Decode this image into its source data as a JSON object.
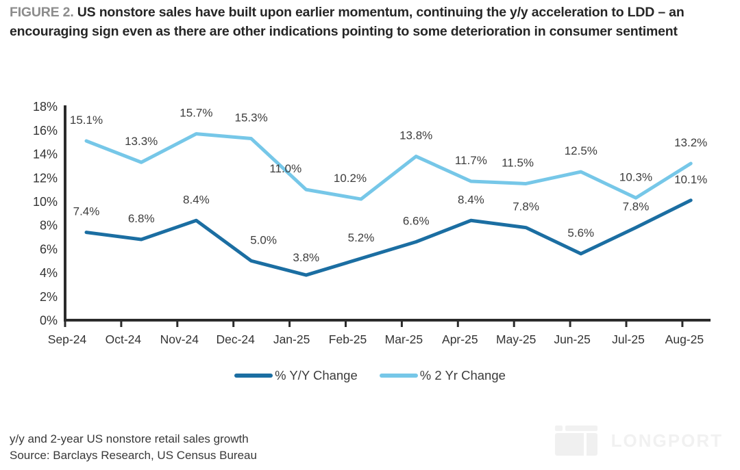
{
  "title": {
    "prefix": "FIGURE 2.",
    "text": "US nonstore sales have built upon earlier momentum, continuing the y/y acceleration to LDD – an encouraging sign even as there are other indications pointing to some deterioration in consumer sentiment"
  },
  "chart_data": {
    "type": "line",
    "categories": [
      "Sep-24",
      "Oct-24",
      "Nov-24",
      "Dec-24",
      "Jan-25",
      "Feb-25",
      "Mar-25",
      "Apr-25",
      "May-25",
      "Jun-25",
      "Jul-25",
      "Aug-25"
    ],
    "series": [
      {
        "name": "% Y/Y Change",
        "color": "#1b6ea2",
        "values": [
          7.4,
          6.8,
          8.4,
          5.0,
          3.8,
          5.2,
          6.6,
          8.4,
          7.8,
          5.6,
          7.8,
          10.1
        ]
      },
      {
        "name": "% 2 Yr Change",
        "color": "#76c7e8",
        "values": [
          15.1,
          13.3,
          15.7,
          15.3,
          11.0,
          10.2,
          13.8,
          11.7,
          11.5,
          12.5,
          10.3,
          13.2
        ]
      }
    ],
    "title": "",
    "xlabel": "",
    "ylabel": "",
    "ylim": [
      0,
      18
    ],
    "ytick_step": 2,
    "ytick_suffix": "%",
    "grid": false,
    "legend_position": "bottom",
    "data_labels": true,
    "label_offsets": {
      "0": {
        "3": {
          "dx": 18
        },
        "4": {
          "dy": 5
        }
      },
      "1": {
        "4": {
          "dx": -30
        },
        "5": {
          "dx": -16
        },
        "8": {
          "dx": -12
        }
      }
    },
    "axis_color": "#2b2b2b",
    "label_color": "#3d3d3d"
  },
  "footer": {
    "caption": "y/y and 2-year US nonstore retail sales growth",
    "source": "Source: Barclays Research, US Census Bureau"
  },
  "watermark": {
    "text": "LONGPORT"
  }
}
